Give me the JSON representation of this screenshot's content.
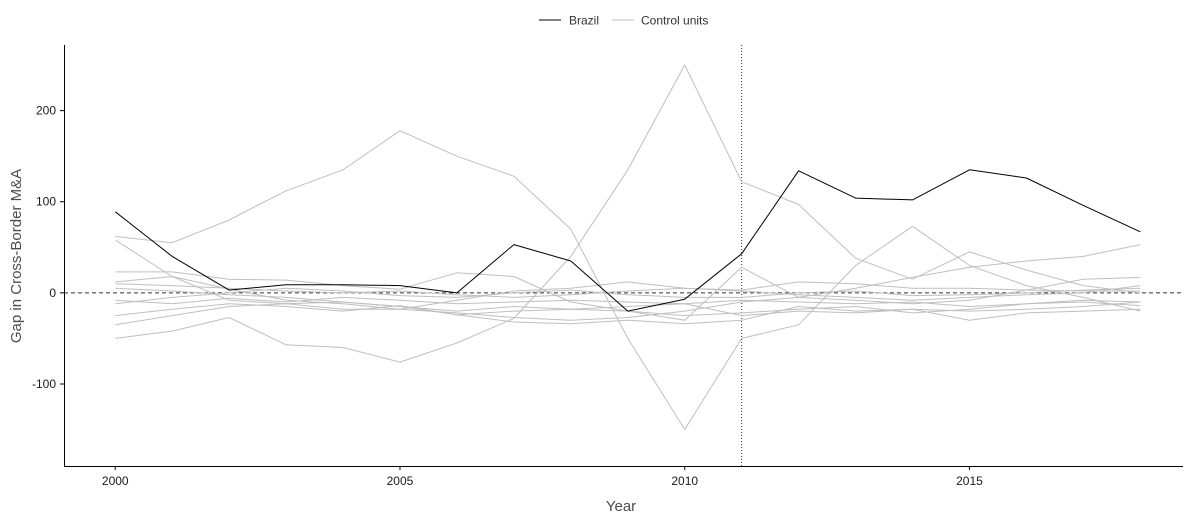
{
  "chart_data": {
    "type": "line",
    "xlabel": "Year",
    "ylabel": "Gap in Cross-Border M&A",
    "xlim": [
      1999.1,
      2018.75
    ],
    "ylim": [
      -190,
      272
    ],
    "x_ticks": [
      2000,
      2005,
      2010,
      2015
    ],
    "x_tick_labels": [
      "2000",
      "2005",
      "2010",
      "2015"
    ],
    "y_ticks": [
      -100,
      0,
      100,
      200
    ],
    "y_tick_labels": [
      "-100",
      "0",
      "100",
      "200"
    ],
    "reference_lines": {
      "horizontal_y": 0,
      "horizontal_style": "dashed",
      "vertical_x": 2011,
      "vertical_style": "dotted"
    },
    "legend": {
      "position": "top",
      "entries": [
        {
          "label": "Brazil",
          "color": "#000000"
        },
        {
          "label": "Control units",
          "color": "#bfbfbf"
        }
      ]
    },
    "x": [
      2000,
      2001,
      2002,
      2003,
      2004,
      2005,
      2006,
      2007,
      2008,
      2009,
      2010,
      2011,
      2012,
      2013,
      2014,
      2015,
      2016,
      2017,
      2018
    ],
    "series": [
      {
        "name": "Brazil",
        "color": "#000000",
        "values": [
          89,
          40,
          3,
          9,
          9,
          8,
          0,
          53,
          35,
          -20,
          -7,
          43,
          134,
          104,
          102,
          135,
          126,
          96,
          67
        ]
      },
      {
        "color": "#bfbfbf",
        "values": [
          62,
          55,
          80,
          112,
          135,
          178,
          150,
          128,
          70,
          -50,
          -150,
          -50,
          -35,
          30,
          73,
          30,
          8,
          -5,
          -20
        ]
      },
      {
        "color": "#bfbfbf",
        "values": [
          -50,
          -42,
          -27,
          -57,
          -60,
          -76,
          -55,
          -28,
          40,
          135,
          250,
          122,
          97,
          38,
          15,
          45,
          25,
          8,
          0
        ]
      },
      {
        "color": "#bfbfbf",
        "values": [
          23,
          23,
          15,
          14,
          8,
          4,
          22,
          18,
          -10,
          -20,
          -30,
          28,
          -5,
          5,
          17,
          28,
          35,
          40,
          53
        ]
      },
      {
        "color": "#bfbfbf",
        "values": [
          58,
          18,
          4,
          -8,
          -12,
          -18,
          -22,
          -27,
          -30,
          -27,
          -20,
          -10,
          -5,
          -8,
          -12,
          -8,
          3,
          15,
          17
        ]
      },
      {
        "color": "#bfbfbf",
        "values": [
          -35,
          -25,
          -15,
          -12,
          -10,
          -15,
          -24,
          -32,
          -34,
          -30,
          -34,
          -30,
          -15,
          -20,
          -18,
          -30,
          -22,
          -20,
          -18
        ]
      },
      {
        "color": "#bfbfbf",
        "values": [
          12,
          18,
          -8,
          -12,
          -18,
          -18,
          -8,
          2,
          5,
          12,
          5,
          3,
          12,
          10,
          5,
          5,
          3,
          2,
          2
        ]
      },
      {
        "color": "#bfbfbf",
        "values": [
          -25,
          -18,
          -12,
          -15,
          -20,
          -14,
          -24,
          -20,
          -18,
          -20,
          -25,
          -22,
          -18,
          -15,
          -22,
          -18,
          -12,
          -10,
          -14
        ]
      },
      {
        "color": "#bfbfbf",
        "values": [
          -12,
          -5,
          0,
          5,
          2,
          -3,
          -5,
          0,
          3,
          -2,
          -5,
          -5,
          0,
          2,
          -3,
          -2,
          0,
          3,
          5
        ]
      },
      {
        "color": "#bfbfbf",
        "values": [
          10,
          8,
          5,
          2,
          0,
          2,
          -2,
          -5,
          -2,
          2,
          5,
          2,
          -2,
          -5,
          -8,
          -5,
          -2,
          0,
          8
        ]
      },
      {
        "color": "#bfbfbf",
        "values": [
          -8,
          -12,
          -6,
          -10,
          -5,
          -8,
          -12,
          -10,
          -8,
          -10,
          -12,
          -8,
          -10,
          -12,
          -10,
          -15,
          -12,
          -8,
          -10
        ]
      },
      {
        "color": "#bfbfbf",
        "values": [
          5,
          2,
          -2,
          -5,
          -10,
          -15,
          -20,
          -15,
          -18,
          -15,
          -12,
          -25,
          -20,
          -22,
          -18,
          -20,
          -18,
          -15,
          -10
        ]
      }
    ]
  }
}
